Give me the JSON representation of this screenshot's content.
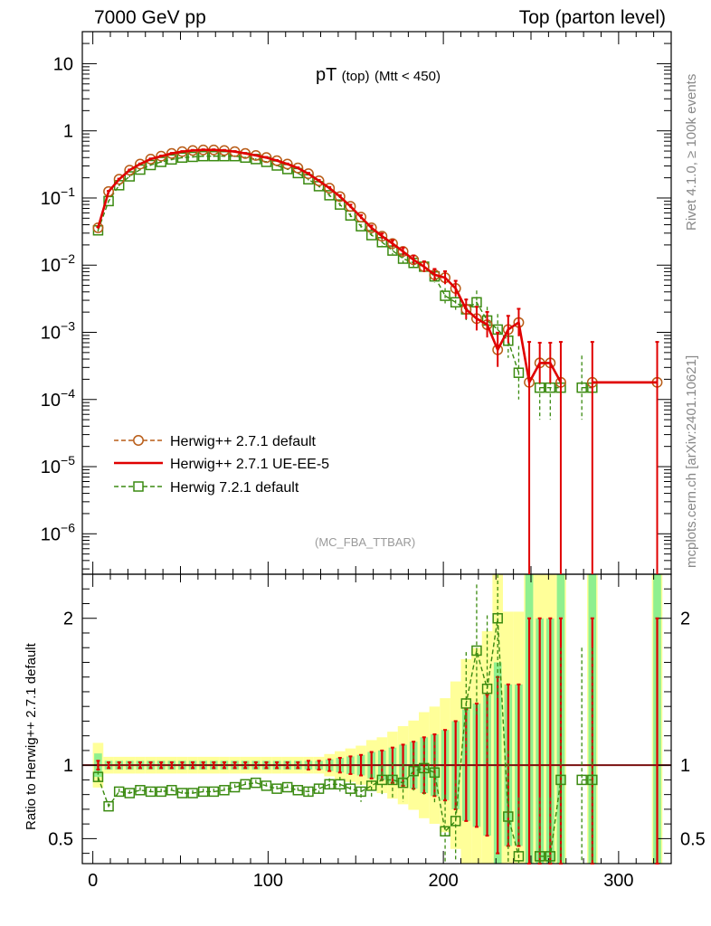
{
  "header": {
    "left": "7000 GeV pp",
    "right": "Top (parton level)"
  },
  "side": {
    "rivet": "Rivet 4.1.0, ≥ 100k events",
    "mcplots": "mcplots.cern.ch [arXiv:2401.10621]"
  },
  "chart_data": [
    {
      "type": "line",
      "title": "pT",
      "title_sub": "(top)",
      "title_cut": "(Mtt < 450)",
      "watermark": "(MC_FBA_TTBAR)",
      "yscale": "log",
      "xlim": [
        -6,
        330
      ],
      "ylim": [
        2.5e-07,
        30
      ],
      "yticks": [
        {
          "v": 10,
          "label": "10"
        },
        {
          "v": 1,
          "label": "1"
        },
        {
          "v": 0.1,
          "label": "10^-1"
        },
        {
          "v": 0.01,
          "label": "10^-2"
        },
        {
          "v": 0.001,
          "label": "10^-3"
        },
        {
          "v": 0.0001,
          "label": "10^-4"
        },
        {
          "v": 1e-05,
          "label": "10^-5"
        },
        {
          "v": 1e-06,
          "label": "10^-6"
        }
      ],
      "x": [
        3,
        9,
        15,
        21,
        27,
        33,
        39,
        45,
        51,
        57,
        63,
        69,
        75,
        81,
        87,
        93,
        99,
        105,
        111,
        117,
        123,
        129,
        135,
        141,
        147,
        153,
        159,
        165,
        171,
        177,
        183,
        189,
        195,
        201,
        207,
        213,
        219,
        225,
        231,
        237,
        243,
        249,
        255,
        261,
        267,
        273,
        279,
        285,
        322
      ],
      "series": [
        {
          "name": "Herwig++ 2.7.1 default",
          "color": "#b85c17",
          "style": "dashed",
          "marker": "circle",
          "values": [
            0.036,
            0.125,
            0.19,
            0.26,
            0.32,
            0.38,
            0.42,
            0.46,
            0.49,
            0.51,
            0.52,
            0.52,
            0.51,
            0.49,
            0.46,
            0.43,
            0.4,
            0.36,
            0.32,
            0.28,
            0.23,
            0.18,
            0.14,
            0.105,
            0.075,
            0.052,
            0.036,
            0.027,
            0.021,
            0.016,
            0.012,
            0.0095,
            0.0072,
            0.0065,
            0.0045,
            0.0022,
            0.0016,
            0.0013,
            0.00055,
            0.0011,
            0.0014,
            0.00018,
            0.00035,
            0.00035,
            0.00018,
            null,
            null,
            0.00018,
            0.00018
          ]
        },
        {
          "name": "Herwig++ 2.7.1 UE-EE-5",
          "color": "#e00000",
          "style": "solid",
          "marker": "none",
          "values": [
            0.036,
            0.125,
            0.19,
            0.26,
            0.32,
            0.38,
            0.42,
            0.46,
            0.49,
            0.51,
            0.52,
            0.52,
            0.51,
            0.49,
            0.46,
            0.43,
            0.4,
            0.36,
            0.32,
            0.28,
            0.23,
            0.18,
            0.14,
            0.105,
            0.075,
            0.052,
            0.036,
            0.027,
            0.021,
            0.016,
            0.012,
            0.0095,
            0.0072,
            0.0065,
            0.0045,
            0.0022,
            0.0016,
            0.0013,
            0.00055,
            0.0011,
            0.0014,
            0.00018,
            0.00035,
            0.00035,
            0.00018,
            null,
            null,
            0.00018,
            0.00018
          ],
          "err_hi_factor": [
            1.03,
            1.02,
            1.02,
            1.02,
            1.02,
            1.02,
            1.02,
            1.02,
            1.02,
            1.02,
            1.02,
            1.02,
            1.02,
            1.02,
            1.02,
            1.02,
            1.02,
            1.02,
            1.02,
            1.02,
            1.03,
            1.03,
            1.04,
            1.05,
            1.06,
            1.07,
            1.08,
            1.1,
            1.12,
            1.14,
            1.16,
            1.2,
            1.22,
            1.25,
            1.3,
            1.4,
            1.5,
            1.55,
            1.8,
            1.6,
            1.6,
            4,
            2,
            2,
            4,
            1,
            1,
            4,
            4
          ]
        },
        {
          "name": "Herwig 7.2.1 default",
          "color": "#3a8a10",
          "style": "dashed",
          "marker": "square",
          "values": [
            0.033,
            0.09,
            0.155,
            0.21,
            0.265,
            0.31,
            0.345,
            0.375,
            0.4,
            0.41,
            0.42,
            0.42,
            0.42,
            0.42,
            0.4,
            0.38,
            0.345,
            0.305,
            0.27,
            0.235,
            0.19,
            0.15,
            0.11,
            0.08,
            0.055,
            0.038,
            0.028,
            0.022,
            0.0165,
            0.0125,
            0.0108,
            0.0095,
            0.0068,
            0.0035,
            0.0028,
            0.0022,
            0.0028,
            0.0015,
            0.0011,
            0.00075,
            0.00025,
            null,
            0.00015,
            0.00015,
            0.00015,
            null,
            0.00015,
            0.00015,
            null
          ],
          "err_hi_factor": [
            1.04,
            1.03,
            1.03,
            1.03,
            1.03,
            1.03,
            1.03,
            1.03,
            1.03,
            1.03,
            1.03,
            1.03,
            1.03,
            1.03,
            1.03,
            1.03,
            1.03,
            1.03,
            1.03,
            1.03,
            1.04,
            1.04,
            1.05,
            1.06,
            1.07,
            1.08,
            1.1,
            1.12,
            1.14,
            1.16,
            1.18,
            1.2,
            1.25,
            1.3,
            1.35,
            1.45,
            1.5,
            1.6,
            1.7,
            1.8,
            2.5,
            1,
            3,
            3,
            3,
            1,
            3,
            3,
            1
          ]
        }
      ],
      "legend": [
        "Herwig++ 2.7.1 default",
        "Herwig++ 2.7.1 UE-EE-5",
        "Herwig 7.2.1 default"
      ]
    },
    {
      "type": "line",
      "ylabel": "Ratio to Herwig++ 2.7.1 default",
      "xlim": [
        -6,
        330
      ],
      "ylim": [
        0.33,
        2.3
      ],
      "xticks": [
        0,
        100,
        200,
        300
      ],
      "yticks": [
        {
          "v": 0.5,
          "label": "0.5"
        },
        {
          "v": 1,
          "label": "1"
        },
        {
          "v": 2,
          "label": "2"
        }
      ],
      "band_half_width": [
        0.08,
        0.03,
        0.03,
        0.03,
        0.03,
        0.03,
        0.03,
        0.03,
        0.03,
        0.03,
        0.03,
        0.03,
        0.03,
        0.03,
        0.03,
        0.03,
        0.03,
        0.03,
        0.03,
        0.03,
        0.03,
        0.03,
        0.04,
        0.05,
        0.06,
        0.07,
        0.09,
        0.1,
        0.12,
        0.14,
        0.16,
        0.19,
        0.21,
        0.24,
        0.3,
        0.38,
        0.42,
        0.48,
        0.7,
        0.55,
        0.55,
        1.5,
        1,
        1,
        1.5,
        0,
        0,
        1.5,
        1.5
      ],
      "series": [
        {
          "name": "Herwig++ 2.7.1 UE-EE-5",
          "color": "#e00000",
          "values": [
            1,
            1,
            1,
            1,
            1,
            1,
            1,
            1,
            1,
            1,
            1,
            1,
            1,
            1,
            1,
            1,
            1,
            1,
            1,
            1,
            1,
            1,
            1,
            1,
            1,
            1,
            1,
            1,
            1,
            1,
            1,
            1,
            1,
            1,
            1,
            1,
            1,
            1,
            1,
            1,
            1,
            1,
            1,
            1,
            1,
            null,
            null,
            1,
            1
          ],
          "errors": [
            0.03,
            0.02,
            0.02,
            0.02,
            0.02,
            0.02,
            0.02,
            0.02,
            0.02,
            0.02,
            0.02,
            0.02,
            0.02,
            0.02,
            0.02,
            0.02,
            0.02,
            0.02,
            0.02,
            0.02,
            0.03,
            0.03,
            0.04,
            0.05,
            0.06,
            0.07,
            0.09,
            0.1,
            0.12,
            0.14,
            0.16,
            0.19,
            0.21,
            0.24,
            0.3,
            0.38,
            0.42,
            0.48,
            0.6,
            0.55,
            0.55,
            1,
            1,
            1,
            1,
            0,
            0,
            1,
            1
          ]
        },
        {
          "name": "Herwig 7.2.1 default",
          "color": "#3a8a10",
          "values": [
            0.92,
            0.72,
            0.82,
            0.81,
            0.83,
            0.82,
            0.82,
            0.83,
            0.81,
            0.81,
            0.82,
            0.82,
            0.83,
            0.85,
            0.87,
            0.88,
            0.86,
            0.84,
            0.85,
            0.83,
            0.82,
            0.84,
            0.87,
            0.87,
            0.84,
            0.82,
            0.86,
            0.9,
            0.9,
            0.88,
            0.96,
            0.98,
            0.95,
            0.55,
            0.62,
            1.42,
            1.78,
            1.52,
            2.0,
            0.65,
            0.38,
            null,
            0.38,
            0.38,
            0.9,
            null,
            0.9,
            0.9,
            null
          ],
          "errors": [
            0.04,
            0.02,
            0.02,
            0.02,
            0.02,
            0.02,
            0.02,
            0.02,
            0.02,
            0.02,
            0.02,
            0.02,
            0.02,
            0.02,
            0.02,
            0.02,
            0.02,
            0.02,
            0.02,
            0.02,
            0.03,
            0.03,
            0.04,
            0.05,
            0.06,
            0.07,
            0.08,
            0.1,
            0.12,
            0.13,
            0.15,
            0.18,
            0.21,
            0.25,
            0.28,
            0.35,
            0.45,
            0.5,
            0.55,
            0.45,
            0.4,
            0,
            0.4,
            0.4,
            0.9,
            0,
            0.9,
            0.9,
            0
          ]
        }
      ]
    }
  ]
}
